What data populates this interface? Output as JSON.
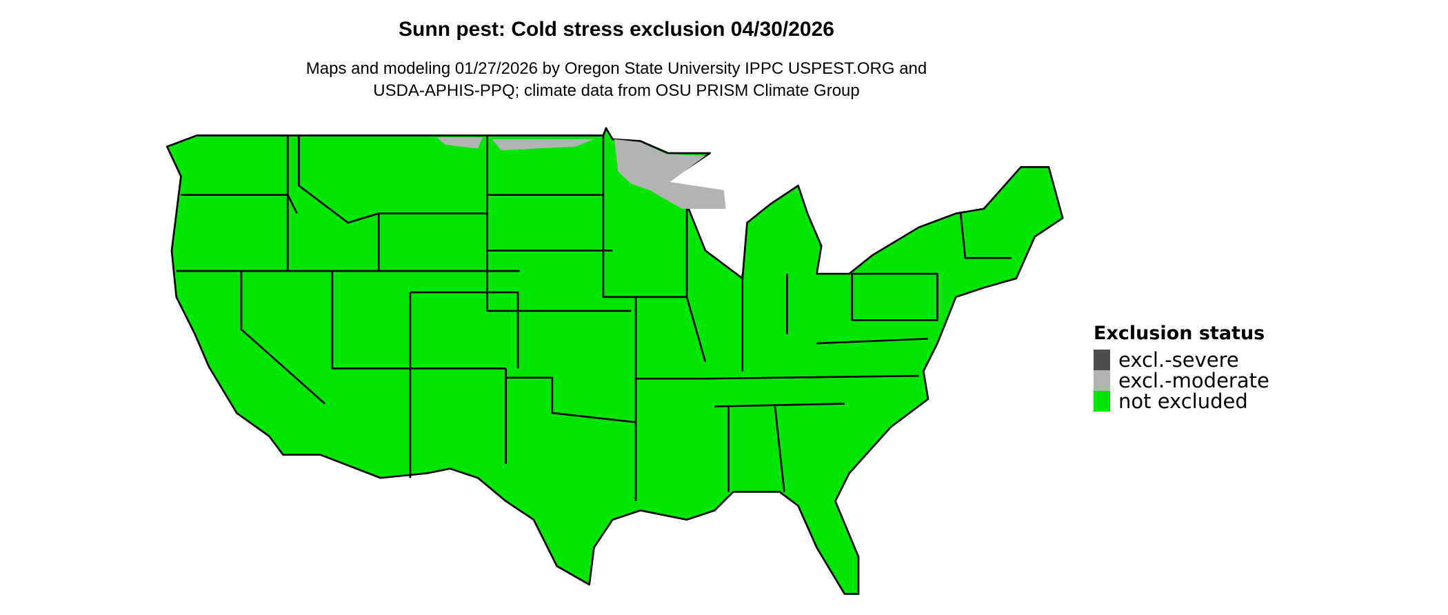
{
  "title": "Sunn pest: Cold stress exclusion 04/30/2026",
  "subtitle": {
    "line1": "Maps and modeling 01/27/2026 by Oregon State University IPPC USPEST.ORG and",
    "line2": "USDA-APHIS-PPQ; climate data from OSU PRISM Climate Group"
  },
  "map": {
    "region": "Contiguous United States",
    "dominant_status": "not excluded",
    "moderate_exclusion_areas": [
      "northern Minnesota",
      "northern Wisconsin",
      "northern North Dakota border"
    ]
  },
  "legend": {
    "title": "Exclusion status",
    "items": [
      {
        "label": "excl.-severe",
        "color": "#4d4d4d"
      },
      {
        "label": "excl.-moderate",
        "color": "#b3b3b3"
      },
      {
        "label": "not excluded",
        "color": "#00e600"
      }
    ]
  }
}
